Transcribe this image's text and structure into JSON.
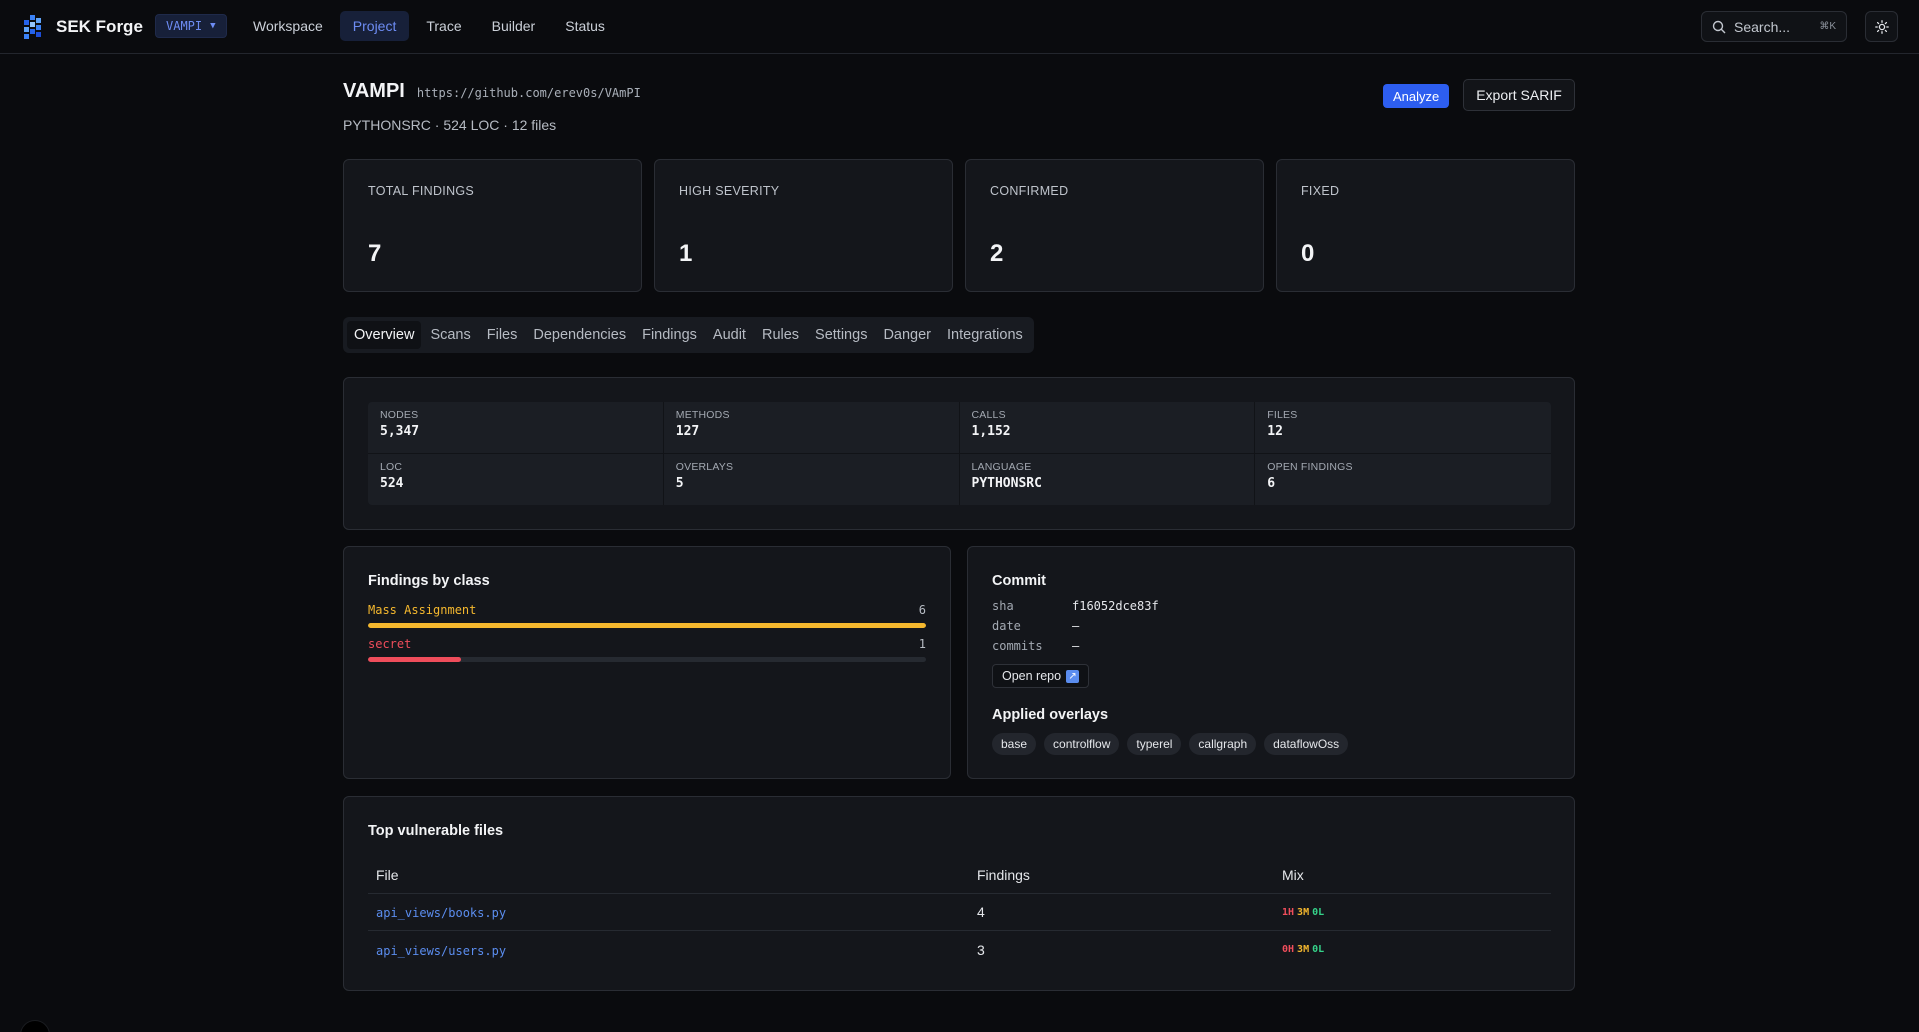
{
  "app": {
    "name": "SEK Forge",
    "project_selector": "VAMPI"
  },
  "nav": [
    {
      "label": "Workspace",
      "active": false
    },
    {
      "label": "Project",
      "active": true
    },
    {
      "label": "Trace",
      "active": false
    },
    {
      "label": "Builder",
      "active": false
    },
    {
      "label": "Status",
      "active": false
    }
  ],
  "search": {
    "placeholder": "Search...",
    "shortcut": "⌘K"
  },
  "project": {
    "name": "VAMPI",
    "url": "https://github.com/erev0s/VAmPI",
    "meta": "PYTHONSRC · 524 LOC · 12 files",
    "analyze_label": "Analyze",
    "export_label": "Export SARIF"
  },
  "stats": [
    {
      "label": "TOTAL FINDINGS",
      "value": "7"
    },
    {
      "label": "HIGH SEVERITY",
      "value": "1"
    },
    {
      "label": "CONFIRMED",
      "value": "2"
    },
    {
      "label": "FIXED",
      "value": "0"
    }
  ],
  "tabs": [
    {
      "label": "Overview",
      "active": true
    },
    {
      "label": "Scans",
      "active": false
    },
    {
      "label": "Files",
      "active": false
    },
    {
      "label": "Dependencies",
      "active": false
    },
    {
      "label": "Findings",
      "active": false
    },
    {
      "label": "Audit",
      "active": false
    },
    {
      "label": "Rules",
      "active": false
    },
    {
      "label": "Settings",
      "active": false
    },
    {
      "label": "Danger",
      "active": false
    },
    {
      "label": "Integrations",
      "active": false
    }
  ],
  "metrics": [
    {
      "label": "NODES",
      "value": "5,347"
    },
    {
      "label": "METHODS",
      "value": "127"
    },
    {
      "label": "CALLS",
      "value": "1,152"
    },
    {
      "label": "FILES",
      "value": "12"
    },
    {
      "label": "LOC",
      "value": "524"
    },
    {
      "label": "OVERLAYS",
      "value": "5"
    },
    {
      "label": "LANGUAGE",
      "value": "PYTHONSRC"
    },
    {
      "label": "OPEN FINDINGS",
      "value": "6"
    }
  ],
  "findings_by_class": {
    "title": "Findings by class",
    "items": [
      {
        "name": "Mass Assignment",
        "count": "6",
        "fraction": 1.0,
        "color": "#f5b82e"
      },
      {
        "name": "secret",
        "count": "1",
        "fraction": 0.167,
        "color": "#ef4d5b"
      }
    ]
  },
  "commit": {
    "title": "Commit",
    "rows": [
      {
        "key": "sha",
        "value": "f16052dce83f"
      },
      {
        "key": "date",
        "value": "—"
      },
      {
        "key": "commits",
        "value": "—"
      }
    ],
    "open_repo_label": "Open repo"
  },
  "overlays": {
    "title": "Applied overlays",
    "items": [
      "base",
      "controlflow",
      "typerel",
      "callgraph",
      "dataflowOss"
    ]
  },
  "top_files": {
    "title": "Top vulnerable files",
    "columns": [
      "File",
      "Findings",
      "Mix"
    ],
    "rows": [
      {
        "file": "api_views/books.py",
        "findings": "4",
        "h": "1H",
        "m": "3M",
        "l": "0L"
      },
      {
        "file": "api_views/users.py",
        "findings": "3",
        "h": "0H",
        "m": "3M",
        "l": "0L"
      }
    ]
  },
  "colors": {
    "accent": "#2d5ef0",
    "link": "#5b8def",
    "high": "#ef4d5b",
    "medium": "#f5b82e",
    "low": "#35d38a"
  }
}
